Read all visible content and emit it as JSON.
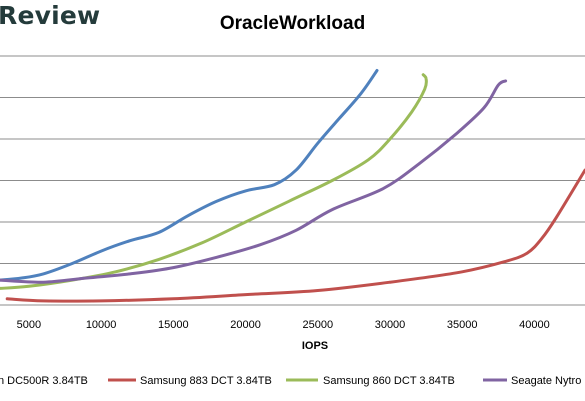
{
  "brand": {
    "text": "Review"
  },
  "chart_data": {
    "type": "line",
    "title": "OracleWorkload",
    "xlabel": "IOPS",
    "ylabel": "",
    "xlim": [
      3000,
      43500
    ],
    "ylim": [
      0,
      12
    ],
    "x_ticks": [
      5000,
      10000,
      15000,
      20000,
      25000,
      30000,
      35000,
      40000
    ],
    "grid": "horizontal",
    "legend_position": "bottom",
    "series": [
      {
        "name": "n DC500R 3.84TB",
        "color": "#4f81bd",
        "x": [
          3000,
          4500,
          6000,
          8000,
          10000,
          12000,
          14000,
          16000,
          18000,
          20000,
          22000,
          23500,
          25000,
          26500,
          28000,
          29100
        ],
        "y": [
          1.2,
          1.3,
          1.5,
          2.0,
          2.6,
          3.1,
          3.5,
          4.3,
          5.0,
          5.5,
          5.8,
          6.5,
          7.8,
          9.0,
          10.2,
          11.3
        ]
      },
      {
        "name": "Samsung 883 DCT 3.84TB",
        "color": "#c0504d",
        "x": [
          3500,
          6000,
          10000,
          15000,
          20000,
          25000,
          30000,
          35000,
          38000,
          39500,
          40500,
          41500,
          43500
        ],
        "y": [
          0.3,
          0.2,
          0.2,
          0.3,
          0.5,
          0.7,
          1.1,
          1.6,
          2.1,
          2.5,
          3.2,
          4.2,
          6.5
        ]
      },
      {
        "name": "Samsung 860 DCT 3.84TB",
        "color": "#9bbb59",
        "x": [
          3000,
          5000,
          8000,
          11000,
          14000,
          17000,
          20000,
          23000,
          26000,
          28500,
          30000,
          31500,
          32400,
          32500,
          32300
        ],
        "y": [
          0.8,
          0.9,
          1.2,
          1.6,
          2.2,
          3.0,
          4.0,
          5.0,
          6.0,
          7.0,
          8.0,
          9.3,
          10.4,
          10.9,
          11.1
        ]
      },
      {
        "name": "Seagate Nytro",
        "color": "#8064a2",
        "x": [
          3000,
          6000,
          9000,
          12000,
          15000,
          18000,
          21000,
          23500,
          26000,
          29500,
          32000,
          34500,
          36500,
          37500,
          38000
        ],
        "y": [
          1.2,
          1.1,
          1.3,
          1.5,
          1.8,
          2.3,
          2.9,
          3.6,
          4.6,
          5.6,
          6.8,
          8.2,
          9.5,
          10.6,
          10.8
        ]
      }
    ]
  }
}
